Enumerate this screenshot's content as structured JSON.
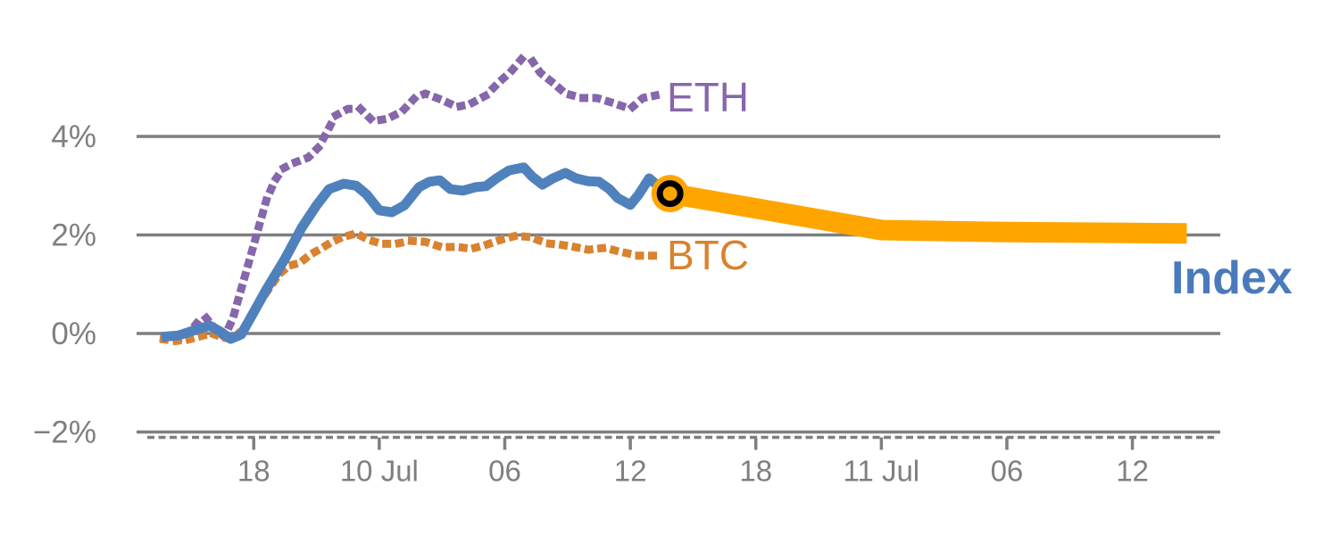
{
  "chart_data": {
    "type": "line",
    "title": "",
    "xlabel": "",
    "ylabel": "",
    "x_axis_note": "time axis, t in hours: 18 = first '18' tick, 24 = '10 Jul' midnight, 48 = '11 Jul' midnight",
    "xlim": [
      12.4,
      64.2
    ],
    "ylim": [
      -2.6,
      6.0
    ],
    "grid": "horizontal",
    "grid_color": "#7f7f7f",
    "axis_style": "dashed-baseline-with-ticks",
    "x_ticks": [
      {
        "t": 18,
        "label": "18"
      },
      {
        "t": 24,
        "label": "10 Jul"
      },
      {
        "t": 30,
        "label": "06"
      },
      {
        "t": 36,
        "label": "12"
      },
      {
        "t": 42,
        "label": "18"
      },
      {
        "t": 48,
        "label": "11 Jul"
      },
      {
        "t": 54,
        "label": "06"
      },
      {
        "t": 60,
        "label": "12"
      }
    ],
    "y_ticks": [
      {
        "p": 4,
        "label": "4%"
      },
      {
        "p": 2,
        "label": "2%"
      },
      {
        "p": 0,
        "label": "0%"
      },
      {
        "p": -2,
        "label": "−2%"
      }
    ],
    "series": [
      {
        "name": "ETH",
        "style": "dotted",
        "color": "#8667ab",
        "width": 9,
        "legend_position": "end-of-line",
        "points": [
          [
            13.7,
            -0.09
          ],
          [
            14.3,
            -0.13
          ],
          [
            14.8,
            -0.05
          ],
          [
            15.3,
            0.22
          ],
          [
            15.7,
            0.33
          ],
          [
            16.2,
            0.07
          ],
          [
            16.6,
            -0.07
          ],
          [
            17.0,
            0.3
          ],
          [
            17.4,
            0.9
          ],
          [
            17.8,
            1.5
          ],
          [
            18.2,
            2.1
          ],
          [
            18.6,
            2.7
          ],
          [
            19.0,
            3.1
          ],
          [
            19.4,
            3.35
          ],
          [
            19.9,
            3.46
          ],
          [
            20.6,
            3.57
          ],
          [
            21.1,
            3.78
          ],
          [
            21.5,
            4.09
          ],
          [
            21.9,
            4.42
          ],
          [
            22.5,
            4.56
          ],
          [
            23.1,
            4.56
          ],
          [
            23.7,
            4.31
          ],
          [
            24.4,
            4.36
          ],
          [
            25.1,
            4.51
          ],
          [
            25.7,
            4.78
          ],
          [
            26.2,
            4.87
          ],
          [
            27.0,
            4.74
          ],
          [
            27.7,
            4.6
          ],
          [
            28.3,
            4.65
          ],
          [
            29.1,
            4.83
          ],
          [
            29.7,
            5.09
          ],
          [
            30.3,
            5.32
          ],
          [
            30.8,
            5.57
          ],
          [
            31.3,
            5.54
          ],
          [
            31.7,
            5.29
          ],
          [
            32.3,
            5.09
          ],
          [
            32.9,
            4.87
          ],
          [
            33.7,
            4.78
          ],
          [
            34.4,
            4.78
          ],
          [
            35.1,
            4.69
          ],
          [
            36.0,
            4.56
          ],
          [
            36.6,
            4.78
          ],
          [
            37.2,
            4.83
          ]
        ]
      },
      {
        "name": "BTC",
        "style": "dotted",
        "color": "#d9822f",
        "width": 9,
        "legend_position": "end-of-line",
        "points": [
          [
            13.7,
            -0.12
          ],
          [
            14.3,
            -0.15
          ],
          [
            14.9,
            -0.12
          ],
          [
            15.5,
            -0.05
          ],
          [
            16.0,
            0.0
          ],
          [
            16.5,
            -0.08
          ],
          [
            17.0,
            -0.12
          ],
          [
            17.5,
            0.1
          ],
          [
            17.9,
            0.35
          ],
          [
            18.3,
            0.65
          ],
          [
            18.8,
            0.95
          ],
          [
            19.2,
            1.2
          ],
          [
            19.7,
            1.38
          ],
          [
            20.2,
            1.43
          ],
          [
            20.7,
            1.6
          ],
          [
            21.2,
            1.72
          ],
          [
            21.7,
            1.85
          ],
          [
            22.2,
            1.95
          ],
          [
            22.9,
            2.03
          ],
          [
            23.5,
            1.9
          ],
          [
            24.1,
            1.82
          ],
          [
            24.8,
            1.82
          ],
          [
            25.5,
            1.88
          ],
          [
            26.2,
            1.86
          ],
          [
            27.0,
            1.75
          ],
          [
            27.7,
            1.76
          ],
          [
            28.4,
            1.72
          ],
          [
            29.1,
            1.8
          ],
          [
            29.8,
            1.9
          ],
          [
            30.5,
            1.98
          ],
          [
            31.2,
            1.96
          ],
          [
            32.0,
            1.83
          ],
          [
            32.7,
            1.8
          ],
          [
            33.3,
            1.76
          ],
          [
            34.0,
            1.7
          ],
          [
            34.8,
            1.74
          ],
          [
            35.4,
            1.67
          ],
          [
            36.4,
            1.58
          ],
          [
            37.3,
            1.58
          ]
        ]
      },
      {
        "name": "Index",
        "style": "solid",
        "color": "#4f81bd",
        "width": 11,
        "legend_position": "right",
        "points": [
          [
            13.6,
            -0.07
          ],
          [
            14.4,
            -0.04
          ],
          [
            15.2,
            0.07
          ],
          [
            15.9,
            0.16
          ],
          [
            16.4,
            0.04
          ],
          [
            16.9,
            -0.11
          ],
          [
            17.4,
            -0.02
          ],
          [
            18.0,
            0.43
          ],
          [
            18.6,
            0.89
          ],
          [
            19.5,
            1.52
          ],
          [
            20.3,
            2.15
          ],
          [
            21.0,
            2.6
          ],
          [
            21.6,
            2.93
          ],
          [
            22.3,
            3.04
          ],
          [
            22.9,
            3.0
          ],
          [
            23.4,
            2.82
          ],
          [
            24.0,
            2.5
          ],
          [
            24.6,
            2.46
          ],
          [
            25.2,
            2.6
          ],
          [
            25.9,
            2.97
          ],
          [
            26.4,
            3.08
          ],
          [
            26.9,
            3.11
          ],
          [
            27.4,
            2.93
          ],
          [
            28.0,
            2.9
          ],
          [
            28.6,
            2.97
          ],
          [
            29.1,
            2.99
          ],
          [
            29.6,
            3.15
          ],
          [
            30.2,
            3.31
          ],
          [
            30.9,
            3.37
          ],
          [
            31.3,
            3.19
          ],
          [
            31.8,
            3.02
          ],
          [
            32.3,
            3.15
          ],
          [
            32.9,
            3.26
          ],
          [
            33.4,
            3.15
          ],
          [
            34.0,
            3.09
          ],
          [
            34.5,
            3.08
          ],
          [
            35.0,
            2.93
          ],
          [
            35.4,
            2.75
          ],
          [
            36.0,
            2.61
          ],
          [
            36.4,
            2.82
          ],
          [
            36.9,
            3.15
          ],
          [
            37.4,
            2.97
          ],
          [
            37.9,
            2.84
          ]
        ]
      },
      {
        "name": "Index forecast",
        "style": "solid",
        "color": "#ffa500",
        "width": 23,
        "legend_position": "none",
        "points": [
          [
            37.9,
            2.84
          ],
          [
            48.0,
            2.1
          ],
          [
            54.0,
            2.06
          ],
          [
            60.0,
            2.04
          ],
          [
            62.6,
            2.03
          ]
        ]
      }
    ],
    "marker": {
      "t": 37.9,
      "p": 2.84,
      "type": "ringed-circle",
      "fill": "#ffa500",
      "ring_color": "#000000",
      "outer_radius": 21,
      "ring_radius": 11.5,
      "ring_stroke": 7
    }
  },
  "labels": {
    "eth": "ETH",
    "btc": "BTC",
    "index": "Index"
  }
}
